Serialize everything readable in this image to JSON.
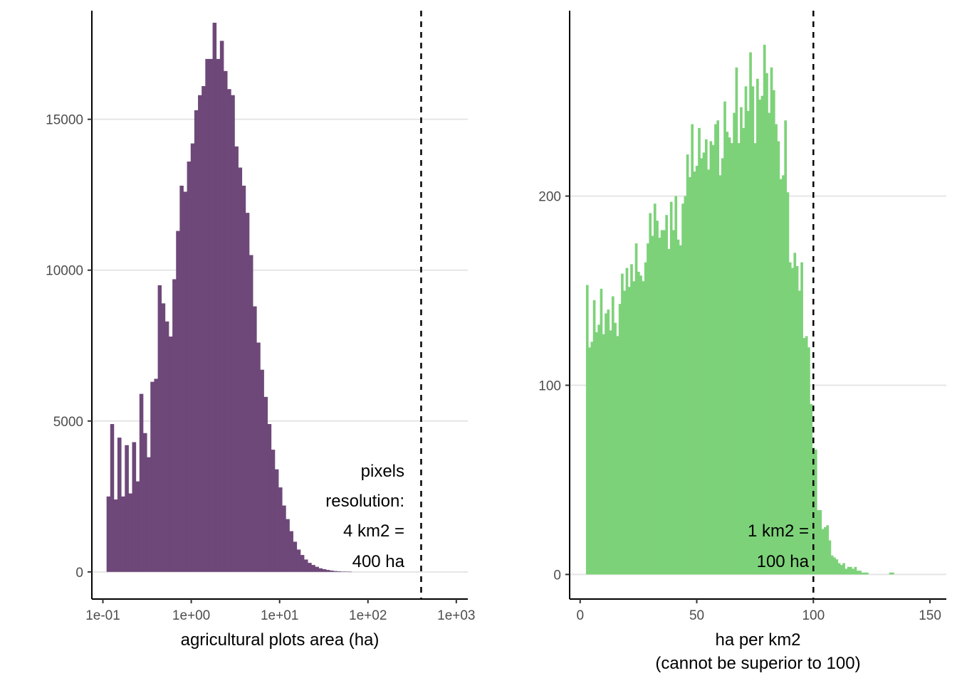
{
  "chart_data": [
    {
      "type": "bar",
      "subtype": "histogram",
      "x_scale": "log10",
      "xlabel": "agricultural plots area (ha)",
      "xlabel_line2": "",
      "ylabel": "",
      "color": "#6b4476",
      "grid": "horizontal-major",
      "xlim": [
        0.075,
        1350
      ],
      "ylim": [
        -900,
        18600
      ],
      "x_ticks": [
        "1e-01",
        "1e+00",
        "1e+01",
        "1e+02",
        "1e+03"
      ],
      "y_ticks": [
        "0",
        "5000",
        "10000",
        "15000"
      ],
      "bin_edges": [
        0.11,
        0.121,
        0.133,
        0.146,
        0.161,
        0.177,
        0.195,
        0.214,
        0.236,
        0.259,
        0.285,
        0.314,
        0.345,
        0.38,
        0.418,
        0.459,
        0.505,
        0.556,
        0.612,
        0.673,
        0.74,
        0.814,
        0.895,
        0.985,
        1.083,
        1.192,
        1.311,
        1.442,
        1.586,
        1.745,
        1.919,
        2.111,
        2.322,
        2.554,
        2.81,
        3.091,
        3.4,
        3.74,
        4.114,
        4.525,
        4.978,
        5.476,
        6.023,
        6.626,
        7.288,
        8.017,
        8.819,
        9.701,
        10.67,
        11.74,
        12.91,
        14.2,
        15.62,
        17.19,
        18.91,
        20.8,
        22.88,
        25.16,
        27.68,
        30.45,
        33.49,
        36.84,
        40.53,
        44.58,
        49.04,
        53.94,
        59.34,
        65.27
      ],
      "values": [
        2500,
        4900,
        2400,
        4450,
        2500,
        4200,
        2600,
        4300,
        3000,
        5900,
        4600,
        3800,
        6300,
        6400,
        9500,
        8900,
        8300,
        7800,
        9700,
        11300,
        12800,
        12600,
        13600,
        14200,
        15300,
        15800,
        16100,
        17000,
        17000,
        18200,
        17000,
        17600,
        16600,
        16000,
        15800,
        14100,
        13400,
        12800,
        11900,
        10500,
        8800,
        7600,
        6700,
        5800,
        4900,
        4050,
        3400,
        2800,
        2200,
        1750,
        1350,
        1000,
        740,
        560,
        410,
        300,
        230,
        170,
        120,
        90,
        65,
        45,
        30,
        20,
        13,
        8,
        5
      ],
      "vline": {
        "x": 400,
        "style": "dashed"
      },
      "annotation": {
        "lines": [
          "pixels",
          "resolution:",
          "4 km2 =",
          "400 ha"
        ]
      }
    },
    {
      "type": "bar",
      "subtype": "histogram",
      "x_scale": "linear",
      "xlabel": "ha per km2",
      "xlabel_line2": "(cannot be superior to 100)",
      "ylabel": "",
      "color": "#7ad176",
      "grid": "horizontal-major",
      "xlim": [
        -4.5,
        157
      ],
      "ylim": [
        -13,
        298
      ],
      "x_ticks": [
        "0",
        "50",
        "100",
        "150"
      ],
      "y_ticks": [
        "0",
        "100",
        "200"
      ],
      "bin_start": 2.5,
      "bin_width": 1,
      "values": [
        153,
        120,
        123,
        145,
        128,
        132,
        151,
        127,
        138,
        140,
        129,
        147,
        133,
        126,
        143,
        159,
        150,
        162,
        152,
        164,
        155,
        175,
        160,
        158,
        155,
        165,
        175,
        191,
        179,
        196,
        187,
        178,
        182,
        182,
        190,
        172,
        197,
        182,
        200,
        177,
        174,
        196,
        200,
        222,
        210,
        238,
        213,
        216,
        236,
        220,
        223,
        230,
        214,
        229,
        227,
        238,
        240,
        211,
        220,
        250,
        234,
        231,
        228,
        244,
        268,
        228,
        247,
        236,
        258,
        245,
        276,
        258,
        228,
        262,
        251,
        253,
        280,
        265,
        244,
        268,
        256,
        238,
        229,
        209,
        211,
        240,
        202,
        165,
        162,
        170,
        163,
        150,
        165,
        125,
        126,
        120,
        90,
        67,
        66,
        34,
        34,
        24,
        25,
        26,
        18,
        10,
        9,
        8,
        6,
        5,
        6,
        3,
        4,
        4,
        3,
        4,
        2,
        2,
        1,
        1,
        1,
        0,
        0,
        0,
        0,
        0,
        0,
        0,
        0,
        0,
        1,
        1
      ],
      "vline": {
        "x": 100,
        "style": "dashed"
      },
      "annotation": {
        "lines": [
          "1 km2 =",
          "100 ha"
        ]
      }
    }
  ]
}
